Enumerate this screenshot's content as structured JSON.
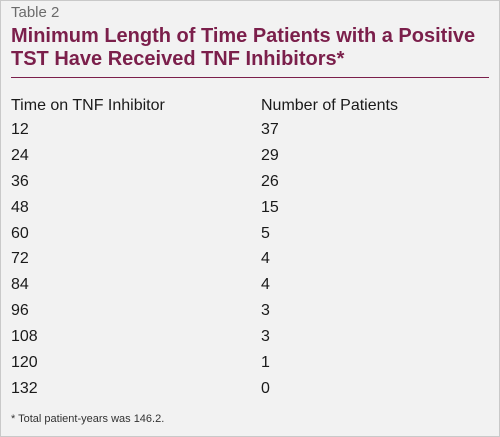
{
  "table": {
    "label": "Table 2",
    "title": "Minimum Length of Time Patients with a Positive TST Have Received TNF Inhibitors*",
    "columns": [
      "Time on TNF Inhibitor",
      "Number of Patients"
    ],
    "rows": [
      [
        "12",
        "37"
      ],
      [
        "24",
        "29"
      ],
      [
        "36",
        "26"
      ],
      [
        "48",
        "15"
      ],
      [
        "60",
        "5"
      ],
      [
        "72",
        "4"
      ],
      [
        "84",
        "4"
      ],
      [
        "96",
        "3"
      ],
      [
        "108",
        "3"
      ],
      [
        "120",
        "1"
      ],
      [
        "132",
        "0"
      ]
    ],
    "footnote": "* Total patient-years was 146.2.",
    "accent_color": "#7b1f4b"
  }
}
